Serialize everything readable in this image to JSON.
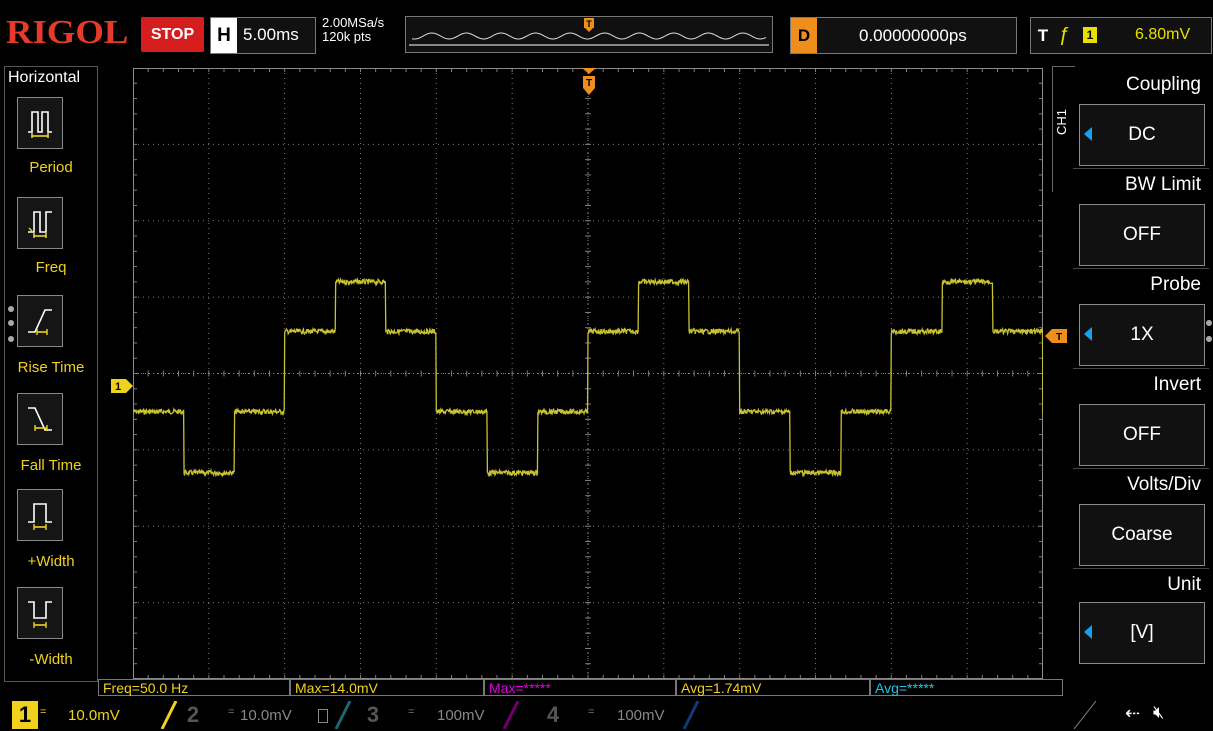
{
  "header": {
    "brand": "RIGOL",
    "run_state": "STOP",
    "timebase_label": "H",
    "timebase": "5.00ms",
    "sample_rate": "2.00MSa/s",
    "memory_depth": "120k pts",
    "delay_label": "D",
    "delay": "0.00000000ps",
    "trigger_label": "T",
    "trigger_source": "1",
    "trigger_level": "6.80mV"
  },
  "left_menu": {
    "title": "Horizontal",
    "items": [
      {
        "label": "Period",
        "icon": "period-icon"
      },
      {
        "label": "Freq",
        "icon": "frequency-icon"
      },
      {
        "label": "Rise Time",
        "icon": "rise-time-icon"
      },
      {
        "label": "Fall Time",
        "icon": "fall-time-icon"
      },
      {
        "label": "+Width",
        "icon": "positive-width-icon"
      },
      {
        "label": "-Width",
        "icon": "negative-width-icon"
      }
    ]
  },
  "right_menu": {
    "channel_tab": "CH1",
    "items": [
      {
        "title": "Coupling",
        "value": "DC",
        "arrow": true
      },
      {
        "title": "BW Limit",
        "value": "OFF",
        "arrow": false
      },
      {
        "title": "Probe",
        "value": "1X",
        "arrow": true
      },
      {
        "title": "Invert",
        "value": "OFF",
        "arrow": false
      },
      {
        "title": "Volts/Div",
        "value": "Coarse",
        "arrow": false
      },
      {
        "title": "Unit",
        "value": "[V]",
        "arrow": true
      }
    ]
  },
  "waveform": {
    "channel_marker": "1",
    "trigger_marker": "T",
    "color": "#c8c232",
    "levels_divs": [
      -0.5,
      -1.3,
      -0.5,
      0.55,
      1.2,
      0.55
    ],
    "cycles": 2,
    "period_ms": 20,
    "time_per_div_ms": 5
  },
  "measurements": [
    {
      "text": "Freq=50.0 Hz",
      "color": "#f0d21c"
    },
    {
      "text": "Max=14.0mV",
      "color": "#f0d21c"
    },
    {
      "text": "Max=*****",
      "color": "#e000e0"
    },
    {
      "text": "Avg=1.74mV",
      "color": "#f0d21c"
    },
    {
      "text": "Avg=*****",
      "color": "#19c8e6"
    }
  ],
  "channels": [
    {
      "num": "1",
      "coupling": "=",
      "scale": "10.0mV",
      "active": true,
      "color": "#f0d21c"
    },
    {
      "num": "2",
      "coupling": "=",
      "scale": "10.0mV",
      "active": false,
      "color": "#2fd1e8"
    },
    {
      "num": "3",
      "coupling": "=",
      "scale": "100mV",
      "active": false,
      "color": "#e000e0"
    },
    {
      "num": "4",
      "coupling": "=",
      "scale": "100mV",
      "active": false,
      "color": "#1e78f0"
    }
  ],
  "status_icons": [
    "usb-icon",
    "mute-icon"
  ]
}
